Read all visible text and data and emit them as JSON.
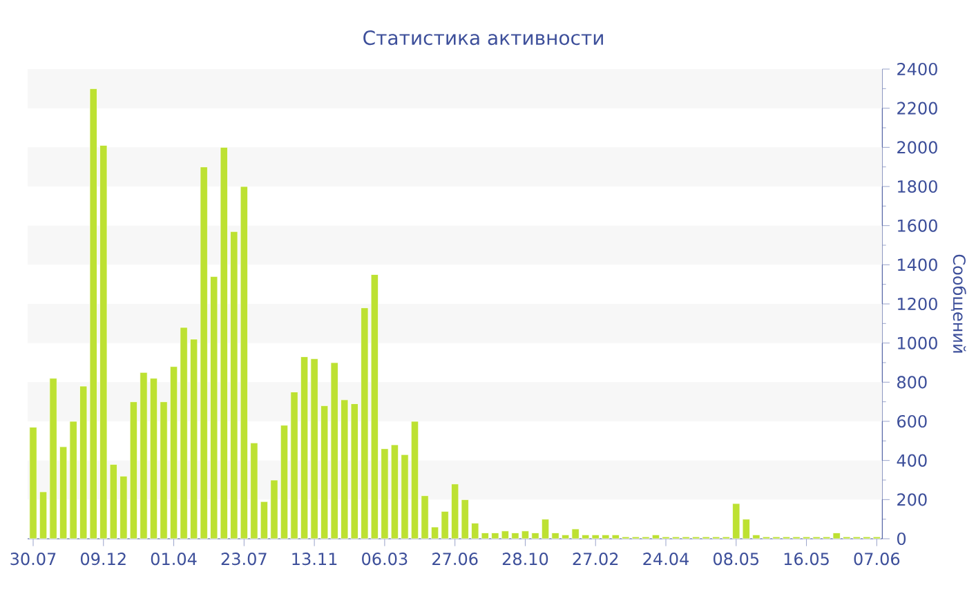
{
  "chart_data": {
    "type": "bar",
    "title": "Статистика активности",
    "ylabel": "Сообщений",
    "categories": [
      "30.07",
      null,
      null,
      null,
      null,
      null,
      null,
      "09.12",
      null,
      null,
      null,
      null,
      null,
      null,
      "01.04",
      null,
      null,
      null,
      null,
      null,
      null,
      "23.07",
      null,
      null,
      null,
      null,
      null,
      null,
      "13.11",
      null,
      null,
      null,
      null,
      null,
      null,
      "06.03",
      null,
      null,
      null,
      null,
      null,
      null,
      "27.06",
      null,
      null,
      null,
      null,
      null,
      null,
      "28.10",
      null,
      null,
      null,
      null,
      null,
      null,
      "27.02",
      null,
      null,
      null,
      null,
      null,
      null,
      "24.04",
      null,
      null,
      null,
      null,
      null,
      null,
      "08.05",
      null,
      null,
      null,
      null,
      null,
      null,
      "16.05",
      null,
      null,
      null,
      null,
      null,
      null,
      "07.06"
    ],
    "values": [
      570,
      240,
      820,
      470,
      600,
      780,
      2300,
      2010,
      380,
      320,
      700,
      850,
      820,
      700,
      880,
      1080,
      1020,
      1900,
      1340,
      2000,
      1570,
      1800,
      490,
      190,
      300,
      580,
      750,
      930,
      920,
      680,
      900,
      710,
      690,
      1180,
      1350,
      460,
      480,
      430,
      600,
      220,
      60,
      140,
      280,
      200,
      80,
      30,
      30,
      40,
      30,
      40,
      30,
      100,
      30,
      20,
      50,
      20,
      20,
      20,
      20,
      10,
      10,
      10,
      20,
      10,
      10,
      10,
      10,
      10,
      10,
      10,
      180,
      100,
      20,
      10,
      10,
      10,
      10,
      10,
      10,
      10,
      30,
      10,
      10,
      10,
      10
    ],
    "color": "#bde132",
    "ylim": [
      0,
      2400
    ],
    "yticks": [
      0,
      200,
      400,
      600,
      800,
      1000,
      1200,
      1400,
      1600,
      1800,
      2000,
      2200,
      2400
    ],
    "bands": [
      {
        "axis": "y",
        "from": 200,
        "to": 400,
        "color": "#f7f7f7"
      },
      {
        "axis": "y",
        "from": 600,
        "to": 800,
        "color": "#f7f7f7"
      },
      {
        "axis": "y",
        "from": 1000,
        "to": 1200,
        "color": "#f7f7f7"
      },
      {
        "axis": "y",
        "from": 1400,
        "to": 1600,
        "color": "#f7f7f7"
      },
      {
        "axis": "y",
        "from": 1800,
        "to": 2000,
        "color": "#f7f7f7"
      },
      {
        "axis": "y",
        "from": 2200,
        "to": 2400,
        "color": "#f7f7f7"
      }
    ]
  }
}
